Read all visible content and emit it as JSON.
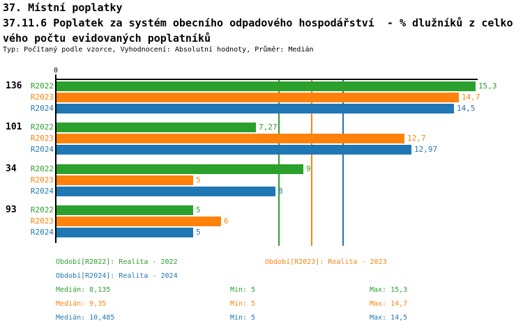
{
  "header": {
    "title": "37. Místní poplatky",
    "subtitle_line1": "37.11.6 Poplatek za systém obecního odpadového hospodářství  - % dlužníků z celko",
    "subtitle_line2": "vého počtu evidovaných poplatníků",
    "meta": "Typ: Počítaný podle vzorce, Vyhodnocení: Absolutní hodnoty, Průměr: Medián"
  },
  "chart_data": {
    "type": "bar",
    "orientation": "horizontal",
    "title": "37.11.6 Poplatek za systém obecního odpadového hospodářství - % dlužníků z celkového počtu evidovaných poplatníků",
    "value_axis": {
      "origin_label": "0",
      "xlim": [
        0,
        15.4
      ],
      "grid": false
    },
    "categories": [
      "136",
      "101",
      "34",
      "93"
    ],
    "series": [
      {
        "name": "R2022",
        "color": "#2ca02c",
        "values": [
          15.3,
          7.27,
          9,
          5
        ],
        "value_labels": [
          "15,3",
          "7,27",
          "9",
          "5"
        ],
        "median": 8.135,
        "median_label": "8,135",
        "min": 5,
        "max": 15.3
      },
      {
        "name": "R2023",
        "color": "#ff820d",
        "values": [
          14.7,
          12.7,
          5,
          6
        ],
        "value_labels": [
          "14,7",
          "12,7",
          "5",
          "6"
        ],
        "median": 9.35,
        "median_label": "9,35",
        "min": 5,
        "max": 14.7
      },
      {
        "name": "R2024",
        "color": "#1f77b4",
        "values": [
          14.5,
          12.97,
          8,
          5
        ],
        "value_labels": [
          "14,5",
          "12,97",
          "8",
          "5"
        ],
        "median": 10.485,
        "median_label": "10,485",
        "min": 5,
        "max": 14.5
      }
    ]
  },
  "legend": [
    {
      "label": "Období[R2022]: Realita - 2022"
    },
    {
      "label": "Období[R2023]: Realita - 2023"
    },
    {
      "label": "Období[R2024]: Realita - 2024"
    }
  ],
  "stats": [
    {
      "median": "Medián: 8,135",
      "min": "Min: 5",
      "max": "Max: 15,3"
    },
    {
      "median": "Medián: 9,35",
      "min": "Min: 5",
      "max": "Max: 14,7"
    },
    {
      "median": "Medián: 10,485",
      "min": "Min: 5",
      "max": "Max: 14,5"
    }
  ]
}
